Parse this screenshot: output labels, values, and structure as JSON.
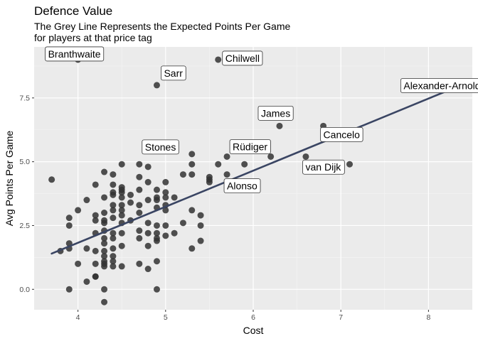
{
  "chart_data": {
    "type": "scatter",
    "title": "Defence Value",
    "subtitle_lines": [
      "The Grey Line Represents the Expected Points Per Game",
      "for players at that price tag"
    ],
    "xlabel": "Cost",
    "ylabel": "Avg Points Per Game",
    "xlim": [
      3.5,
      8.5
    ],
    "ylim": [
      -0.8,
      9.5
    ],
    "x_ticks": [
      4,
      5,
      6,
      7,
      8
    ],
    "y_ticks": [
      0.0,
      2.5,
      5.0,
      7.5
    ],
    "y_tick_labels": [
      "0.0",
      "2.5",
      "5.0",
      "7.5"
    ],
    "grid": true,
    "point_color": "#333333",
    "line_color": "#3a4563",
    "panel_color": "#ebebeb",
    "trend_line": {
      "x": [
        3.7,
        8.3
      ],
      "y": [
        1.4,
        7.9
      ]
    },
    "labeled_points": [
      {
        "name": "Branthwaite",
        "x": 4.0,
        "y": 9.0
      },
      {
        "name": "Chilwell",
        "x": 5.6,
        "y": 9.0
      },
      {
        "name": "Sarr",
        "x": 4.9,
        "y": 8.0
      },
      {
        "name": "Alexander-Arnold",
        "x": 8.3,
        "y": 7.9
      },
      {
        "name": "James",
        "x": 6.3,
        "y": 6.4
      },
      {
        "name": "Cancelo",
        "x": 6.8,
        "y": 6.4
      },
      {
        "name": "Stones",
        "x": 5.3,
        "y": 5.3
      },
      {
        "name": "Rüdiger",
        "x": 5.7,
        "y": 5.2
      },
      {
        "name": "Alonso",
        "x": 5.7,
        "y": 4.5
      },
      {
        "name": "van Dijk",
        "x": 7.1,
        "y": 4.9
      }
    ],
    "points": [
      [
        3.7,
        4.3
      ],
      [
        3.8,
        1.5
      ],
      [
        3.9,
        0.0
      ],
      [
        3.9,
        1.6
      ],
      [
        3.9,
        1.8
      ],
      [
        3.9,
        2.5
      ],
      [
        3.9,
        2.8
      ],
      [
        4.0,
        1.0
      ],
      [
        4.0,
        3.1
      ],
      [
        4.1,
        0.3
      ],
      [
        4.1,
        1.6
      ],
      [
        4.1,
        3.5
      ],
      [
        4.2,
        0.5
      ],
      [
        4.2,
        0.5
      ],
      [
        4.2,
        1.0
      ],
      [
        4.2,
        1.5
      ],
      [
        4.2,
        2.2
      ],
      [
        4.2,
        2.7
      ],
      [
        4.2,
        2.9
      ],
      [
        4.2,
        4.1
      ],
      [
        4.3,
        -0.5
      ],
      [
        4.3,
        0.0
      ],
      [
        4.3,
        0.9
      ],
      [
        4.3,
        1.0
      ],
      [
        4.3,
        1.1
      ],
      [
        4.3,
        1.3
      ],
      [
        4.3,
        1.5
      ],
      [
        4.3,
        1.8
      ],
      [
        4.3,
        2.0
      ],
      [
        4.3,
        2.3
      ],
      [
        4.3,
        2.6
      ],
      [
        4.3,
        2.7
      ],
      [
        4.3,
        3.0
      ],
      [
        4.3,
        3.6
      ],
      [
        4.3,
        4.6
      ],
      [
        4.4,
        0.9
      ],
      [
        4.4,
        1.1
      ],
      [
        4.4,
        1.3
      ],
      [
        4.4,
        1.6
      ],
      [
        4.4,
        2.0
      ],
      [
        4.4,
        2.2
      ],
      [
        4.4,
        2.8
      ],
      [
        4.4,
        3.1
      ],
      [
        4.4,
        3.3
      ],
      [
        4.4,
        3.7
      ],
      [
        4.4,
        3.8
      ],
      [
        4.4,
        4.1
      ],
      [
        4.4,
        4.5
      ],
      [
        4.5,
        0.9
      ],
      [
        4.5,
        1.7
      ],
      [
        4.5,
        2.2
      ],
      [
        4.5,
        2.6
      ],
      [
        4.5,
        2.9
      ],
      [
        4.5,
        3.1
      ],
      [
        4.5,
        3.3
      ],
      [
        4.5,
        3.6
      ],
      [
        4.5,
        3.8
      ],
      [
        4.5,
        3.9
      ],
      [
        4.5,
        4.0
      ],
      [
        4.5,
        4.9
      ],
      [
        4.6,
        2.7
      ],
      [
        4.6,
        3.4
      ],
      [
        4.6,
        3.7
      ],
      [
        4.7,
        1.0
      ],
      [
        4.7,
        2.0
      ],
      [
        4.7,
        2.3
      ],
      [
        4.7,
        3.0
      ],
      [
        4.7,
        3.3
      ],
      [
        4.7,
        3.9
      ],
      [
        4.7,
        4.4
      ],
      [
        4.7,
        4.9
      ],
      [
        4.8,
        0.8
      ],
      [
        4.8,
        1.7
      ],
      [
        4.8,
        2.2
      ],
      [
        4.8,
        2.6
      ],
      [
        4.8,
        3.5
      ],
      [
        4.8,
        4.2
      ],
      [
        4.8,
        4.8
      ],
      [
        4.9,
        0.0
      ],
      [
        4.9,
        1.1
      ],
      [
        4.9,
        1.9
      ],
      [
        4.9,
        2.0
      ],
      [
        4.9,
        2.2
      ],
      [
        4.9,
        2.5
      ],
      [
        4.9,
        3.2
      ],
      [
        4.9,
        3.5
      ],
      [
        4.9,
        3.6
      ],
      [
        4.9,
        3.9
      ],
      [
        5.0,
        2.1
      ],
      [
        5.0,
        2.5
      ],
      [
        5.0,
        3.1
      ],
      [
        5.0,
        3.3
      ],
      [
        5.0,
        3.6
      ],
      [
        5.0,
        3.8
      ],
      [
        5.0,
        4.2
      ],
      [
        5.1,
        2.2
      ],
      [
        5.1,
        3.6
      ],
      [
        5.2,
        2.6
      ],
      [
        5.2,
        4.5
      ],
      [
        5.3,
        1.6
      ],
      [
        5.3,
        3.1
      ],
      [
        5.3,
        4.5
      ],
      [
        5.3,
        4.9
      ],
      [
        5.4,
        1.9
      ],
      [
        5.4,
        2.5
      ],
      [
        5.4,
        2.9
      ],
      [
        5.5,
        4.2
      ],
      [
        5.5,
        4.3
      ],
      [
        5.5,
        4.4
      ],
      [
        5.6,
        4.9
      ],
      [
        5.9,
        4.9
      ],
      [
        6.2,
        5.2
      ],
      [
        6.6,
        5.2
      ]
    ]
  }
}
